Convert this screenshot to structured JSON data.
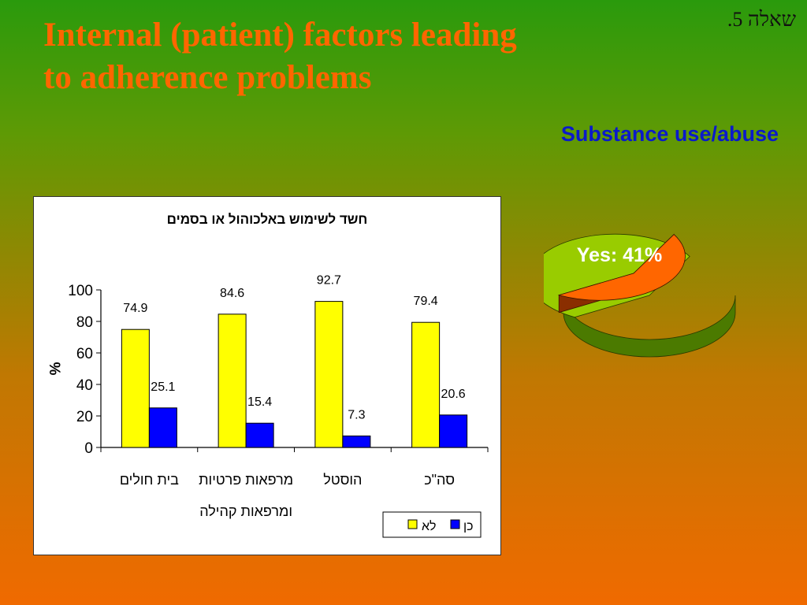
{
  "slide": {
    "title_line1": "Internal (patient) factors leading",
    "title_line2": "to adherence problems",
    "question_label": "שאלה 5.",
    "subtitle": "Substance use/abuse"
  },
  "pie": {
    "label": "Yes: 41%"
  },
  "chart_data": [
    {
      "type": "bar",
      "title": "חשד לשימוש באלכוהול או בסמים",
      "ylabel": "%",
      "ylim": [
        0,
        100
      ],
      "yticks": [
        0,
        20,
        40,
        60,
        80,
        100
      ],
      "categories": [
        [
          "בית חולים"
        ],
        [
          "מרפאות פרטיות",
          "ומרפאות קהילה"
        ],
        [
          "הוסטל"
        ],
        [
          "סה\"כ"
        ]
      ],
      "series": [
        {
          "name": "לא",
          "color": "#ffff00",
          "values": [
            74.9,
            84.6,
            92.7,
            79.4
          ]
        },
        {
          "name": "כן",
          "color": "#0000ff",
          "values": [
            25.1,
            15.4,
            7.3,
            20.6
          ]
        }
      ],
      "legend": "bottom-right"
    },
    {
      "type": "pie",
      "slices": [
        {
          "label": "Yes",
          "value": 41,
          "color": "#ff6600"
        },
        {
          "value": 59,
          "color": "#99cc00"
        }
      ]
    }
  ]
}
